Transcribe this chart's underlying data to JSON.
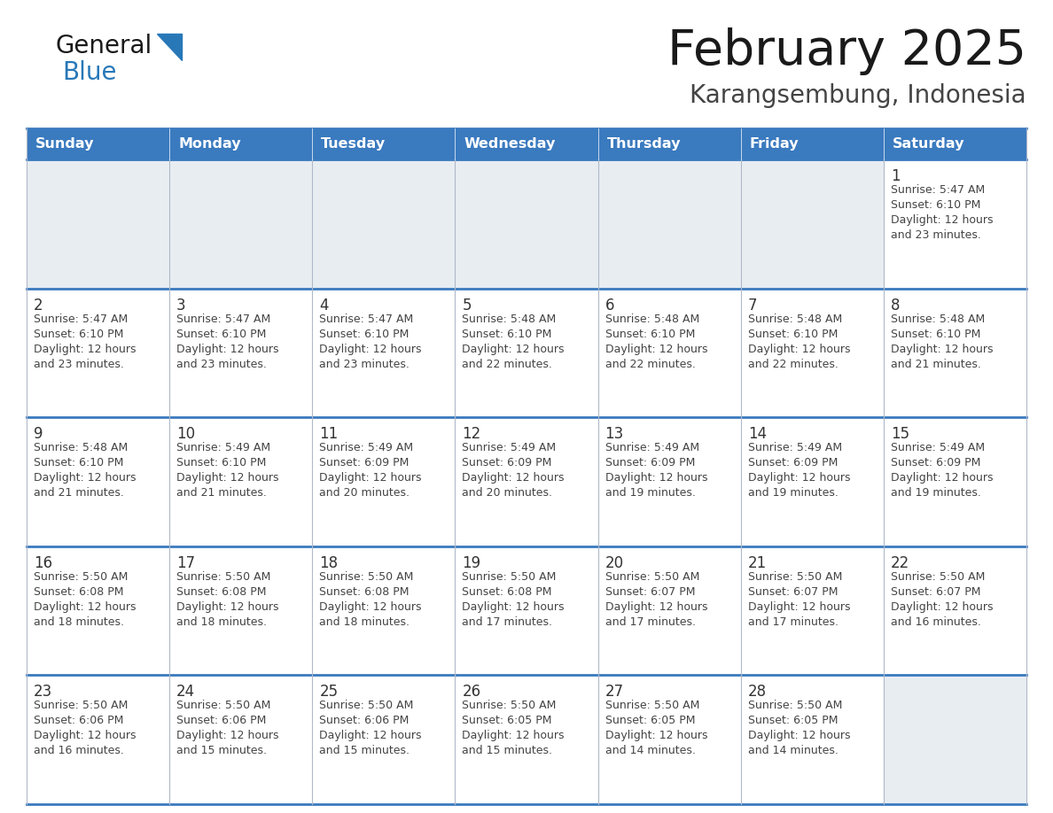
{
  "title": "February 2025",
  "subtitle": "Karangsembung, Indonesia",
  "header_bg_color": "#3a7abf",
  "header_text_color": "#ffffff",
  "empty_cell_bg": "#e8edf2",
  "filled_cell_bg": "#ffffff",
  "border_color": "#3a7abf",
  "thin_border_color": "#b0b8c8",
  "day_headers": [
    "Sunday",
    "Monday",
    "Tuesday",
    "Wednesday",
    "Thursday",
    "Friday",
    "Saturday"
  ],
  "title_color": "#1a1a1a",
  "subtitle_color": "#444444",
  "day_number_color": "#333333",
  "info_text_color": "#444444",
  "logo_general_color": "#1a1a1a",
  "logo_blue_color": "#2878b8",
  "logo_triangle_color": "#2878b8",
  "calendar_data": [
    [
      null,
      null,
      null,
      null,
      null,
      null,
      {
        "day": 1,
        "sunrise": "5:47 AM",
        "sunset": "6:10 PM",
        "daylight_h": "12 hours",
        "daylight_m": "and 23 minutes."
      }
    ],
    [
      {
        "day": 2,
        "sunrise": "5:47 AM",
        "sunset": "6:10 PM",
        "daylight_h": "12 hours",
        "daylight_m": "and 23 minutes."
      },
      {
        "day": 3,
        "sunrise": "5:47 AM",
        "sunset": "6:10 PM",
        "daylight_h": "12 hours",
        "daylight_m": "and 23 minutes."
      },
      {
        "day": 4,
        "sunrise": "5:47 AM",
        "sunset": "6:10 PM",
        "daylight_h": "12 hours",
        "daylight_m": "and 23 minutes."
      },
      {
        "day": 5,
        "sunrise": "5:48 AM",
        "sunset": "6:10 PM",
        "daylight_h": "12 hours",
        "daylight_m": "and 22 minutes."
      },
      {
        "day": 6,
        "sunrise": "5:48 AM",
        "sunset": "6:10 PM",
        "daylight_h": "12 hours",
        "daylight_m": "and 22 minutes."
      },
      {
        "day": 7,
        "sunrise": "5:48 AM",
        "sunset": "6:10 PM",
        "daylight_h": "12 hours",
        "daylight_m": "and 22 minutes."
      },
      {
        "day": 8,
        "sunrise": "5:48 AM",
        "sunset": "6:10 PM",
        "daylight_h": "12 hours",
        "daylight_m": "and 21 minutes."
      }
    ],
    [
      {
        "day": 9,
        "sunrise": "5:48 AM",
        "sunset": "6:10 PM",
        "daylight_h": "12 hours",
        "daylight_m": "and 21 minutes."
      },
      {
        "day": 10,
        "sunrise": "5:49 AM",
        "sunset": "6:10 PM",
        "daylight_h": "12 hours",
        "daylight_m": "and 21 minutes."
      },
      {
        "day": 11,
        "sunrise": "5:49 AM",
        "sunset": "6:09 PM",
        "daylight_h": "12 hours",
        "daylight_m": "and 20 minutes."
      },
      {
        "day": 12,
        "sunrise": "5:49 AM",
        "sunset": "6:09 PM",
        "daylight_h": "12 hours",
        "daylight_m": "and 20 minutes."
      },
      {
        "day": 13,
        "sunrise": "5:49 AM",
        "sunset": "6:09 PM",
        "daylight_h": "12 hours",
        "daylight_m": "and 19 minutes."
      },
      {
        "day": 14,
        "sunrise": "5:49 AM",
        "sunset": "6:09 PM",
        "daylight_h": "12 hours",
        "daylight_m": "and 19 minutes."
      },
      {
        "day": 15,
        "sunrise": "5:49 AM",
        "sunset": "6:09 PM",
        "daylight_h": "12 hours",
        "daylight_m": "and 19 minutes."
      }
    ],
    [
      {
        "day": 16,
        "sunrise": "5:50 AM",
        "sunset": "6:08 PM",
        "daylight_h": "12 hours",
        "daylight_m": "and 18 minutes."
      },
      {
        "day": 17,
        "sunrise": "5:50 AM",
        "sunset": "6:08 PM",
        "daylight_h": "12 hours",
        "daylight_m": "and 18 minutes."
      },
      {
        "day": 18,
        "sunrise": "5:50 AM",
        "sunset": "6:08 PM",
        "daylight_h": "12 hours",
        "daylight_m": "and 18 minutes."
      },
      {
        "day": 19,
        "sunrise": "5:50 AM",
        "sunset": "6:08 PM",
        "daylight_h": "12 hours",
        "daylight_m": "and 17 minutes."
      },
      {
        "day": 20,
        "sunrise": "5:50 AM",
        "sunset": "6:07 PM",
        "daylight_h": "12 hours",
        "daylight_m": "and 17 minutes."
      },
      {
        "day": 21,
        "sunrise": "5:50 AM",
        "sunset": "6:07 PM",
        "daylight_h": "12 hours",
        "daylight_m": "and 17 minutes."
      },
      {
        "day": 22,
        "sunrise": "5:50 AM",
        "sunset": "6:07 PM",
        "daylight_h": "12 hours",
        "daylight_m": "and 16 minutes."
      }
    ],
    [
      {
        "day": 23,
        "sunrise": "5:50 AM",
        "sunset": "6:06 PM",
        "daylight_h": "12 hours",
        "daylight_m": "and 16 minutes."
      },
      {
        "day": 24,
        "sunrise": "5:50 AM",
        "sunset": "6:06 PM",
        "daylight_h": "12 hours",
        "daylight_m": "and 15 minutes."
      },
      {
        "day": 25,
        "sunrise": "5:50 AM",
        "sunset": "6:06 PM",
        "daylight_h": "12 hours",
        "daylight_m": "and 15 minutes."
      },
      {
        "day": 26,
        "sunrise": "5:50 AM",
        "sunset": "6:05 PM",
        "daylight_h": "12 hours",
        "daylight_m": "and 15 minutes."
      },
      {
        "day": 27,
        "sunrise": "5:50 AM",
        "sunset": "6:05 PM",
        "daylight_h": "12 hours",
        "daylight_m": "and 14 minutes."
      },
      {
        "day": 28,
        "sunrise": "5:50 AM",
        "sunset": "6:05 PM",
        "daylight_h": "12 hours",
        "daylight_m": "and 14 minutes."
      },
      null
    ]
  ]
}
